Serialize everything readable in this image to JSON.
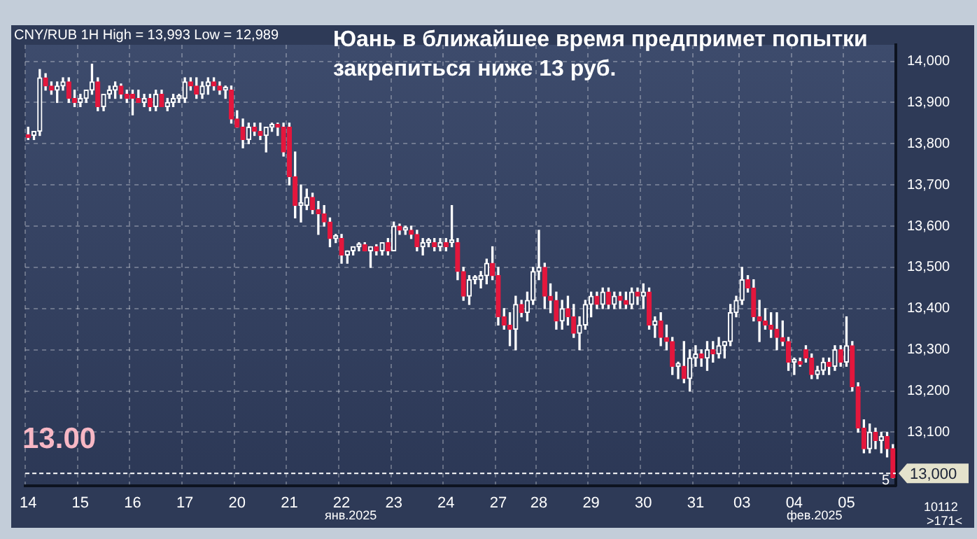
{
  "chart_data": {
    "type": "candlestick",
    "title": "Юань в ближайшее время предпримет попытки закрепиться ниже 13 руб.",
    "subtitle": "CNY/RUB 1H High = 13,993 Low = 12,989",
    "categories": [
      "14",
      null,
      null,
      null,
      null,
      null,
      null,
      null,
      null,
      "15",
      null,
      null,
      null,
      null,
      null,
      null,
      null,
      null,
      "16",
      null,
      null,
      null,
      null,
      null,
      null,
      null,
      null,
      "17",
      null,
      null,
      null,
      null,
      null,
      null,
      null,
      null,
      "20",
      null,
      null,
      null,
      null,
      null,
      null,
      null,
      null,
      "21",
      null,
      null,
      null,
      null,
      null,
      null,
      null,
      null,
      "22",
      null,
      null,
      null,
      null,
      null,
      null,
      null,
      null,
      "23",
      null,
      null,
      null,
      null,
      null,
      null,
      null,
      null,
      "24",
      null,
      null,
      null,
      null,
      null,
      null,
      null,
      null,
      "27",
      null,
      null,
      null,
      null,
      null,
      null,
      "28",
      null,
      null,
      null,
      null,
      null,
      null,
      null,
      null,
      "29",
      null,
      null,
      null,
      null,
      null,
      null,
      null,
      null,
      "30",
      null,
      null,
      null,
      null,
      null,
      null,
      null,
      null,
      "31",
      null,
      null,
      null,
      null,
      null,
      null,
      null,
      "03",
      null,
      null,
      null,
      null,
      null,
      null,
      null,
      null,
      "04",
      null,
      null,
      null,
      null,
      null,
      null,
      null,
      null,
      "05",
      null,
      null,
      null,
      null,
      null,
      null,
      null,
      null
    ],
    "ohlc": [
      [
        13820,
        13840,
        13810,
        13815
      ],
      [
        13820,
        13830,
        13810,
        13830
      ],
      [
        13830,
        13980,
        13820,
        13960
      ],
      [
        13960,
        13970,
        13930,
        13940
      ],
      [
        13940,
        13950,
        13920,
        13930
      ],
      [
        13930,
        13950,
        13900,
        13940
      ],
      [
        13940,
        13960,
        13930,
        13950
      ],
      [
        13950,
        13960,
        13900,
        13910
      ],
      [
        13910,
        13930,
        13890,
        13900
      ],
      [
        13900,
        13920,
        13890,
        13910
      ],
      [
        13910,
        13930,
        13900,
        13930
      ],
      [
        13930,
        13993,
        13920,
        13950
      ],
      [
        13950,
        13960,
        13880,
        13890
      ],
      [
        13890,
        13920,
        13880,
        13920
      ],
      [
        13920,
        13940,
        13910,
        13930
      ],
      [
        13930,
        13950,
        13910,
        13940
      ],
      [
        13940,
        13945,
        13910,
        13920
      ],
      [
        13920,
        13930,
        13900,
        13910
      ],
      [
        13920,
        13930,
        13870,
        13910
      ],
      [
        13910,
        13930,
        13900,
        13900
      ],
      [
        13900,
        13920,
        13890,
        13910
      ],
      [
        13910,
        13920,
        13880,
        13890
      ],
      [
        13890,
        13930,
        13880,
        13920
      ],
      [
        13920,
        13930,
        13890,
        13890
      ],
      [
        13890,
        13910,
        13880,
        13900
      ],
      [
        13900,
        13920,
        13890,
        13910
      ],
      [
        13910,
        13920,
        13900,
        13915
      ],
      [
        13910,
        13960,
        13900,
        13950
      ],
      [
        13950,
        13960,
        13930,
        13940
      ],
      [
        13940,
        13960,
        13910,
        13920
      ],
      [
        13920,
        13950,
        13910,
        13940
      ],
      [
        13940,
        13960,
        13920,
        13950
      ],
      [
        13950,
        13960,
        13930,
        13940
      ],
      [
        13940,
        13950,
        13920,
        13930
      ],
      [
        13930,
        13940,
        13910,
        13935
      ],
      [
        13930,
        13940,
        13850,
        13860
      ],
      [
        13860,
        13880,
        13840,
        13840
      ],
      [
        13840,
        13860,
        13790,
        13810
      ],
      [
        13810,
        13850,
        13800,
        13840
      ],
      [
        13840,
        13850,
        13820,
        13830
      ],
      [
        13830,
        13850,
        13810,
        13820
      ],
      [
        13820,
        13840,
        13780,
        13840
      ],
      [
        13840,
        13850,
        13830,
        13845
      ],
      [
        13845,
        13850,
        13820,
        13840
      ],
      [
        13840,
        13850,
        13770,
        13780
      ],
      [
        13840,
        13850,
        13700,
        13720
      ],
      [
        13720,
        13780,
        13620,
        13650
      ],
      [
        13650,
        13700,
        13610,
        13655
      ],
      [
        13650,
        13690,
        13640,
        13670
      ],
      [
        13670,
        13680,
        13630,
        13640
      ],
      [
        13640,
        13660,
        13580,
        13630
      ],
      [
        13630,
        13650,
        13600,
        13610
      ],
      [
        13610,
        13620,
        13550,
        13570
      ],
      [
        13570,
        13580,
        13560,
        13575
      ],
      [
        13570,
        13580,
        13510,
        13530
      ],
      [
        13530,
        13540,
        13510,
        13540
      ],
      [
        13540,
        13550,
        13530,
        13550
      ],
      [
        13550,
        13560,
        13540,
        13555
      ],
      [
        13555,
        13560,
        13540,
        13540
      ],
      [
        13540,
        13550,
        13500,
        13550
      ],
      [
        13550,
        13555,
        13530,
        13540
      ],
      [
        13540,
        13560,
        13530,
        13560
      ],
      [
        13560,
        13570,
        13530,
        13540
      ],
      [
        13540,
        13610,
        13540,
        13600
      ],
      [
        13600,
        13605,
        13580,
        13590
      ],
      [
        13590,
        13600,
        13580,
        13595
      ],
      [
        13590,
        13600,
        13570,
        13580
      ],
      [
        13580,
        13590,
        13540,
        13550
      ],
      [
        13550,
        13570,
        13530,
        13560
      ],
      [
        13560,
        13570,
        13550,
        13565
      ],
      [
        13560,
        13570,
        13540,
        13550
      ],
      [
        13550,
        13570,
        13540,
        13560
      ],
      [
        13560,
        13570,
        13540,
        13550
      ],
      [
        13560,
        13650,
        13550,
        13565
      ],
      [
        13560,
        13570,
        13470,
        13490
      ],
      [
        13490,
        13500,
        13420,
        13430
      ],
      [
        13430,
        13480,
        13410,
        13470
      ],
      [
        13470,
        13480,
        13460,
        13475
      ],
      [
        13470,
        13490,
        13450,
        13480
      ],
      [
        13480,
        13520,
        13460,
        13510
      ],
      [
        13510,
        13550,
        13470,
        13480
      ],
      [
        13480,
        13500,
        13360,
        13380
      ],
      [
        13380,
        13400,
        13350,
        13360
      ],
      [
        13360,
        13390,
        13310,
        13350
      ],
      [
        13350,
        13430,
        13300,
        13410
      ],
      [
        13410,
        13420,
        13380,
        13390
      ],
      [
        13390,
        13440,
        13370,
        13420
      ],
      [
        13420,
        13500,
        13410,
        13490
      ],
      [
        13490,
        13590,
        13470,
        13500
      ],
      [
        13500,
        13510,
        13400,
        13430
      ],
      [
        13430,
        13460,
        13390,
        13420
      ],
      [
        13420,
        13440,
        13350,
        13370
      ],
      [
        13370,
        13420,
        13350,
        13400
      ],
      [
        13400,
        13430,
        13360,
        13380
      ],
      [
        13380,
        13410,
        13330,
        13340
      ],
      [
        13340,
        13380,
        13300,
        13360
      ],
      [
        13360,
        13420,
        13350,
        13410
      ],
      [
        13410,
        13440,
        13380,
        13430
      ],
      [
        13430,
        13440,
        13400,
        13410
      ],
      [
        13410,
        13450,
        13400,
        13440
      ],
      [
        13440,
        13450,
        13400,
        13410
      ],
      [
        13410,
        13440,
        13400,
        13430
      ],
      [
        13430,
        13440,
        13400,
        13420
      ],
      [
        13420,
        13440,
        13400,
        13410
      ],
      [
        13410,
        13450,
        13400,
        13440
      ],
      [
        13440,
        13450,
        13410,
        13430
      ],
      [
        13430,
        13460,
        13400,
        13440
      ],
      [
        13440,
        13450,
        13350,
        13360
      ],
      [
        13360,
        13380,
        13330,
        13370
      ],
      [
        13370,
        13390,
        13310,
        13330
      ],
      [
        13330,
        13360,
        13300,
        13320
      ],
      [
        13320,
        13330,
        13240,
        13260
      ],
      [
        13260,
        13270,
        13230,
        13265
      ],
      [
        13260,
        13320,
        13220,
        13230
      ],
      [
        13230,
        13300,
        13200,
        13280
      ],
      [
        13280,
        13310,
        13260,
        13290
      ],
      [
        13290,
        13300,
        13260,
        13280
      ],
      [
        13280,
        13320,
        13250,
        13300
      ],
      [
        13300,
        13320,
        13270,
        13290
      ],
      [
        13290,
        13330,
        13280,
        13310
      ],
      [
        13310,
        13320,
        13280,
        13320
      ],
      [
        13320,
        13410,
        13310,
        13390
      ],
      [
        13390,
        13430,
        13380,
        13420
      ],
      [
        13420,
        13500,
        13410,
        13470
      ],
      [
        13470,
        13480,
        13440,
        13450
      ],
      [
        13450,
        13470,
        13370,
        13380
      ],
      [
        13380,
        13420,
        13320,
        13370
      ],
      [
        13370,
        13400,
        13350,
        13360
      ],
      [
        13360,
        13390,
        13330,
        13350
      ],
      [
        13350,
        13390,
        13300,
        13330
      ],
      [
        13330,
        13370,
        13310,
        13320
      ],
      [
        13320,
        13330,
        13250,
        13270
      ],
      [
        13270,
        13280,
        13240,
        13275
      ],
      [
        13270,
        13280,
        13260,
        13265
      ],
      [
        13300,
        13310,
        13270,
        13280
      ],
      [
        13280,
        13290,
        13230,
        13240
      ],
      [
        13240,
        13260,
        13230,
        13250
      ],
      [
        13250,
        13280,
        13240,
        13270
      ],
      [
        13270,
        13280,
        13240,
        13260
      ],
      [
        13260,
        13310,
        13250,
        13300
      ],
      [
        13300,
        13310,
        13260,
        13270
      ],
      [
        13270,
        13380,
        13260,
        13310
      ],
      [
        13310,
        13320,
        13200,
        13210
      ],
      [
        13210,
        13220,
        13100,
        13110
      ],
      [
        13110,
        13130,
        13050,
        13060
      ],
      [
        13060,
        13120,
        13050,
        13100
      ],
      [
        13100,
        13110,
        13060,
        13080
      ],
      [
        13080,
        13100,
        13050,
        13090
      ],
      [
        13090,
        13100,
        13040,
        13060
      ],
      [
        13060,
        13070,
        12989,
        12990
      ]
    ],
    "ylim": [
      12970,
      14040
    ],
    "yticks": [
      {
        "value": 13100,
        "label": "13,100"
      },
      {
        "value": 13200,
        "label": "13,200"
      },
      {
        "value": 13300,
        "label": "13,300"
      },
      {
        "value": 13400,
        "label": "13,400"
      },
      {
        "value": 13500,
        "label": "13,500"
      },
      {
        "value": 13600,
        "label": "13,600"
      },
      {
        "value": 13700,
        "label": "13,700"
      },
      {
        "value": 13800,
        "label": "13,800"
      },
      {
        "value": 13900,
        "label": "13,900"
      },
      {
        "value": 14000,
        "label": "14,000"
      }
    ],
    "ref_lines": [
      {
        "axis": "y",
        "value": 13000,
        "label": "13,000",
        "color": "#ffffff",
        "line_style": "dashed"
      }
    ],
    "annotations": [
      "13.00",
      "янв.2025",
      "фев.2025",
      "5",
      "10112",
      ">171<"
    ],
    "grid": true
  }
}
